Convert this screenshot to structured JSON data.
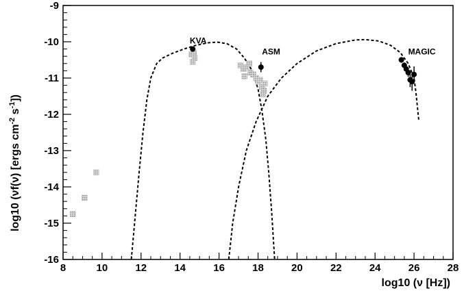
{
  "chart_data": {
    "type": "scatter",
    "title": "",
    "xlabel": "log10 (ν [Hz])",
    "ylabel_parts": {
      "pre": "log10 (νf(ν) [ergs cm",
      "sup1": "-2",
      "mid": " s",
      "sup2": "-1",
      "post": "])"
    },
    "xlim": [
      8,
      28
    ],
    "ylim": [
      -16,
      -9
    ],
    "xticks": [
      8,
      10,
      12,
      14,
      16,
      18,
      20,
      22,
      24,
      26,
      28
    ],
    "yticks": [
      -9,
      -10,
      -11,
      -12,
      -13,
      -14,
      -15,
      -16
    ],
    "grid": false,
    "annotations": [
      {
        "text": "KVA",
        "x": 14.5,
        "y": -10.05
      },
      {
        "text": "ASM",
        "x": 18.2,
        "y": -10.35
      },
      {
        "text": "MAGIC",
        "x": 25.7,
        "y": -10.35
      }
    ],
    "series": [
      {
        "role": "measured",
        "color": "#000000",
        "marker": "filled-circle",
        "points": [
          {
            "x": 14.65,
            "y": -10.2,
            "yerr": 0.04
          },
          {
            "x": 18.15,
            "y": -10.7,
            "yerr": 0.14
          },
          {
            "x": 25.35,
            "y": -10.5,
            "yerr": 0.08
          },
          {
            "x": 25.5,
            "y": -10.65,
            "yerr": 0.08
          },
          {
            "x": 25.6,
            "y": -10.75,
            "yerr": 0.1
          },
          {
            "x": 25.7,
            "y": -10.85,
            "yerr": 0.12
          },
          {
            "x": 25.8,
            "y": -11.05,
            "yerr": 0.2
          },
          {
            "x": 25.9,
            "y": -11.1,
            "yerr": 0.25
          },
          {
            "x": 26.0,
            "y": -10.9,
            "yerr": 0.22
          }
        ]
      },
      {
        "role": "archival",
        "color": "#b8b8b8",
        "marker": "hatched-square",
        "points": [
          {
            "x": 8.5,
            "y": -14.75
          },
          {
            "x": 9.1,
            "y": -14.3
          },
          {
            "x": 9.7,
            "y": -13.6
          },
          {
            "x": 14.6,
            "y": -10.35
          },
          {
            "x": 14.75,
            "y": -10.45
          },
          {
            "x": 14.65,
            "y": -10.55
          },
          {
            "x": 14.7,
            "y": -10.3
          },
          {
            "x": 17.1,
            "y": -10.65
          },
          {
            "x": 17.25,
            "y": -10.75
          },
          {
            "x": 17.4,
            "y": -10.7
          },
          {
            "x": 17.3,
            "y": -10.95
          },
          {
            "x": 17.6,
            "y": -10.85
          },
          {
            "x": 17.75,
            "y": -10.9
          },
          {
            "x": 17.9,
            "y": -11.0
          },
          {
            "x": 18.0,
            "y": -11.1
          },
          {
            "x": 18.1,
            "y": -11.05
          },
          {
            "x": 18.2,
            "y": -11.25
          },
          {
            "x": 18.3,
            "y": -11.35
          },
          {
            "x": 18.35,
            "y": -11.15
          },
          {
            "x": 17.55,
            "y": -10.6
          },
          {
            "x": 18.25,
            "y": -11.45
          }
        ]
      }
    ],
    "curves": [
      {
        "role": "synchrotron-model",
        "style": "dashed",
        "color": "#000000",
        "points": [
          [
            11.5,
            -16
          ],
          [
            11.7,
            -14.8
          ],
          [
            11.9,
            -13.6
          ],
          [
            12.1,
            -12.5
          ],
          [
            12.3,
            -11.6
          ],
          [
            12.5,
            -11.0
          ],
          [
            12.8,
            -10.6
          ],
          [
            13.1,
            -10.45
          ],
          [
            13.6,
            -10.32
          ],
          [
            14.2,
            -10.2
          ],
          [
            14.8,
            -10.1
          ],
          [
            15.4,
            -10.03
          ],
          [
            15.9,
            -10.01
          ],
          [
            16.4,
            -10.05
          ],
          [
            16.9,
            -10.2
          ],
          [
            17.3,
            -10.45
          ],
          [
            17.7,
            -10.8
          ],
          [
            18.0,
            -11.3
          ],
          [
            18.2,
            -11.9
          ],
          [
            18.4,
            -12.7
          ],
          [
            18.55,
            -13.6
          ],
          [
            18.7,
            -14.7
          ],
          [
            18.85,
            -16
          ]
        ]
      },
      {
        "role": "inverse-compton-model",
        "style": "dashed",
        "color": "#000000",
        "points": [
          [
            16.5,
            -16
          ],
          [
            16.7,
            -15.0
          ],
          [
            17.0,
            -14.0
          ],
          [
            17.4,
            -13.0
          ],
          [
            17.9,
            -12.2
          ],
          [
            18.5,
            -11.5
          ],
          [
            19.2,
            -11.0
          ],
          [
            20.0,
            -10.6
          ],
          [
            21.0,
            -10.25
          ],
          [
            22.0,
            -10.05
          ],
          [
            23.0,
            -9.95
          ],
          [
            23.5,
            -9.94
          ],
          [
            24.2,
            -9.98
          ],
          [
            24.8,
            -10.1
          ],
          [
            25.3,
            -10.3
          ],
          [
            25.7,
            -10.6
          ],
          [
            26.0,
            -11.0
          ],
          [
            26.1,
            -11.4
          ],
          [
            26.25,
            -12.2
          ]
        ]
      }
    ]
  }
}
